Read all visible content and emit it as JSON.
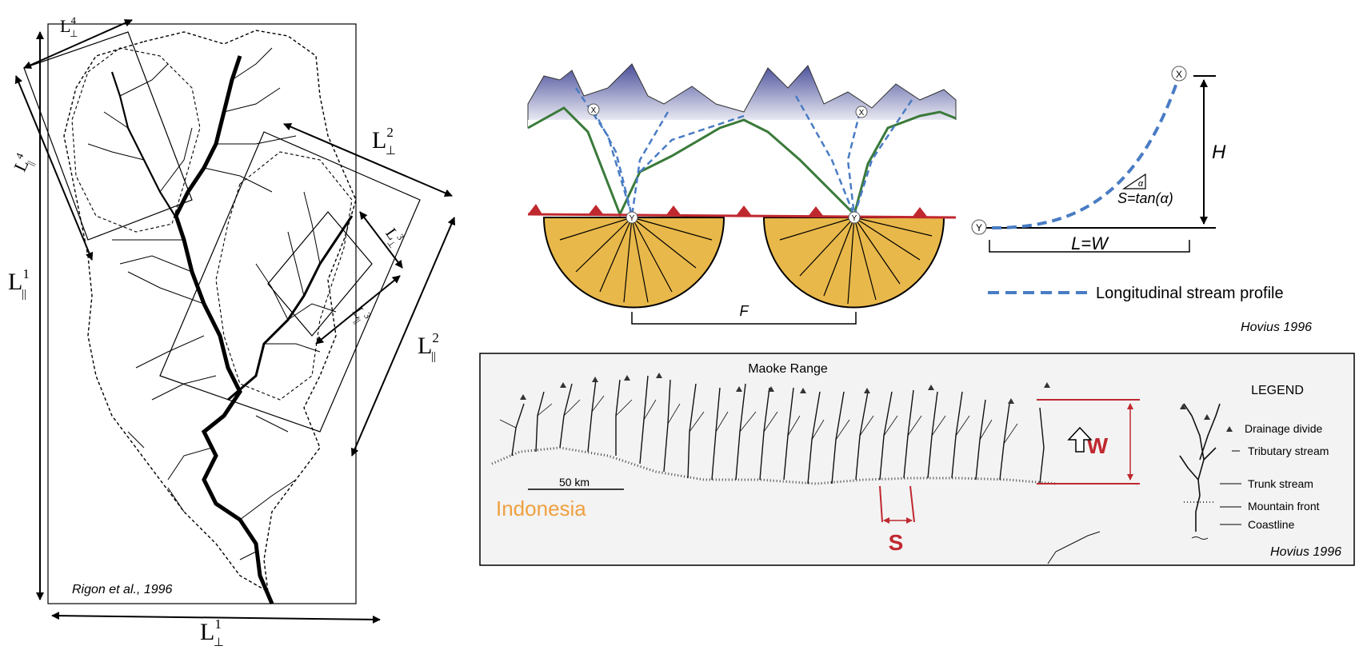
{
  "left_panel": {
    "credit": "Rigon et al., 1996",
    "labels": {
      "L_par_1": "L",
      "L_par_1_sub": "||",
      "L_par_1_sup": "1",
      "L_perp_1": "L",
      "L_perp_1_sub": "⊥",
      "L_perp_1_sup": "1",
      "L_perp_2": "L",
      "L_perp_2_sub": "⊥",
      "L_perp_2_sup": "2",
      "L_par_2": "L",
      "L_par_2_sub": "||",
      "L_par_2_sup": "2",
      "L_perp_3": "L",
      "L_perp_3_sub": "⊥",
      "L_perp_3_sup": "3",
      "L_par_3": "L",
      "L_par_3_sub": "||",
      "L_par_3_sup": "3",
      "L_perp_4": "L",
      "L_perp_4_sub": "⊥",
      "L_perp_4_sup": "4",
      "L_par_4": "L",
      "L_par_4_sub": "||",
      "L_par_4_sup": "4"
    }
  },
  "top_right": {
    "outlet_label": "Y",
    "source_label": "X",
    "spacing_label": "F",
    "height_label": "H",
    "length_label": "L=W",
    "slope_label": "S=tan(α)",
    "alpha_label": "α",
    "legend_text": "Longitudinal stream profile",
    "credit": "Hovius 1996",
    "colors": {
      "fan": "#e8b84a",
      "ridge": "#3a7a3a",
      "front": "#c0282f",
      "profile": "#4a7cc4"
    }
  },
  "bottom_right": {
    "range_label": "Maoke Range",
    "scale_label": "50 km",
    "country_label": "Indonesia",
    "W_label": "W",
    "S_label": "S",
    "credit": "Hovius 1996",
    "legend": {
      "title": "LEGEND",
      "items": [
        "Drainage divide",
        "Tributary stream",
        "Trunk stream",
        "Mountain front",
        "Coastline"
      ]
    },
    "colors": {
      "country": "#f0a040",
      "annot": "#c0282f"
    }
  }
}
